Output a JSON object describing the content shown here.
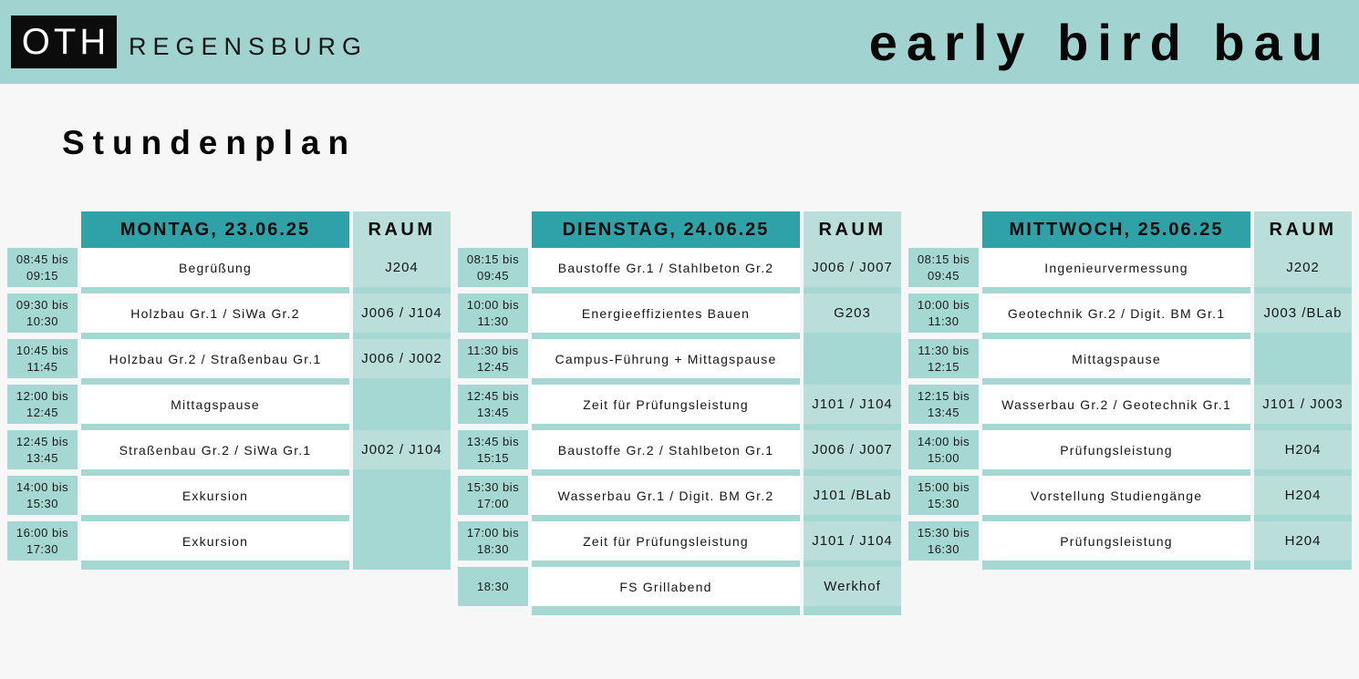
{
  "banner": {
    "logo": "OTH",
    "logo_sub": "REGENSBURG",
    "title": "early bird bau"
  },
  "heading": "Stundenplan",
  "days": [
    {
      "header": "MONTAG, 23.06.25",
      "room_header": "RAUM",
      "rows": [
        {
          "time1": "08:45 bis",
          "time2": "09:15",
          "event": "Begrüßung",
          "room": "J204"
        },
        {
          "time1": "09:30 bis",
          "time2": "10:30",
          "event": "Holzbau Gr.1 / SiWa Gr.2",
          "room": "J006 / J104"
        },
        {
          "time1": "10:45 bis",
          "time2": "11:45",
          "event": "Holzbau Gr.2 / Straßenbau Gr.1",
          "room": "J006 / J002"
        },
        {
          "time1": "12:00 bis",
          "time2": "12:45",
          "event": "Mittagspause",
          "room": ""
        },
        {
          "time1": "12:45 bis",
          "time2": "13:45",
          "event": "Straßenbau Gr.2 / SiWa Gr.1",
          "room": "J002 / J104"
        },
        {
          "time1": "14:00 bis",
          "time2": "15:30",
          "event": "Exkursion",
          "room": ""
        },
        {
          "time1": "16:00 bis",
          "time2": "17:30",
          "event": "Exkursion",
          "room": ""
        }
      ]
    },
    {
      "header": "DIENSTAG, 24.06.25",
      "room_header": "RAUM",
      "rows": [
        {
          "time1": "08:15 bis",
          "time2": "09:45",
          "event": "Baustoffe Gr.1 / Stahlbeton Gr.2",
          "room": "J006 / J007"
        },
        {
          "time1": "10:00 bis",
          "time2": "11:30",
          "event": "Energieeffizientes Bauen",
          "room": "G203"
        },
        {
          "time1": "11:30 bis",
          "time2": "12:45",
          "event": "Campus-Führung + Mittagspause",
          "room": ""
        },
        {
          "time1": "12:45 bis",
          "time2": "13:45",
          "event": "Zeit für Prüfungsleistung",
          "room": "J101 / J104"
        },
        {
          "time1": "13:45 bis",
          "time2": "15:15",
          "event": "Baustoffe Gr.2 / Stahlbeton Gr.1",
          "room": "J006 / J007"
        },
        {
          "time1": "15:30 bis",
          "time2": "17:00",
          "event": "Wasserbau Gr.1 / Digit. BM Gr.2",
          "room": "J101 /BLab"
        },
        {
          "time1": "17:00 bis",
          "time2": "18:30",
          "event": "Zeit für Prüfungsleistung",
          "room": "J101 / J104"
        },
        {
          "time1": "18:30",
          "time2": "",
          "event": "FS Grillabend",
          "room": "Werkhof"
        }
      ]
    },
    {
      "header": "MITTWOCH, 25.06.25",
      "room_header": "RAUM",
      "rows": [
        {
          "time1": "08:15 bis",
          "time2": "09:45",
          "event": "Ingenieurvermessung",
          "room": "J202"
        },
        {
          "time1": "10:00 bis",
          "time2": "11:30",
          "event": "Geotechnik Gr.2 / Digit. BM Gr.1",
          "room": "J003 /BLab"
        },
        {
          "time1": "11:30 bis",
          "time2": "12:15",
          "event": "Mittagspause",
          "room": ""
        },
        {
          "time1": "12:15 bis",
          "time2": "13:45",
          "event": "Wasserbau Gr.2 / Geotechnik Gr.1",
          "room": "J101 / J003"
        },
        {
          "time1": "14:00 bis",
          "time2": "15:00",
          "event": "Prüfungsleistung",
          "room": "H204"
        },
        {
          "time1": "15:00 bis",
          "time2": "15:30",
          "event": "Vorstellung Studiengänge",
          "room": "H204"
        },
        {
          "time1": "15:30 bis",
          "time2": "16:30",
          "event": "Prüfungsleistung",
          "room": "H204"
        }
      ]
    }
  ],
  "colors": {
    "banner": "#a1d4d0",
    "day_header": "#2fa2a8",
    "cell": "#a6d8d3",
    "room": "#badfdb",
    "white_row": "#ffffff",
    "page_bg": "#f7f7f7",
    "logo_bg": "#0c0c0c",
    "logo_fg": "#ffffff"
  }
}
